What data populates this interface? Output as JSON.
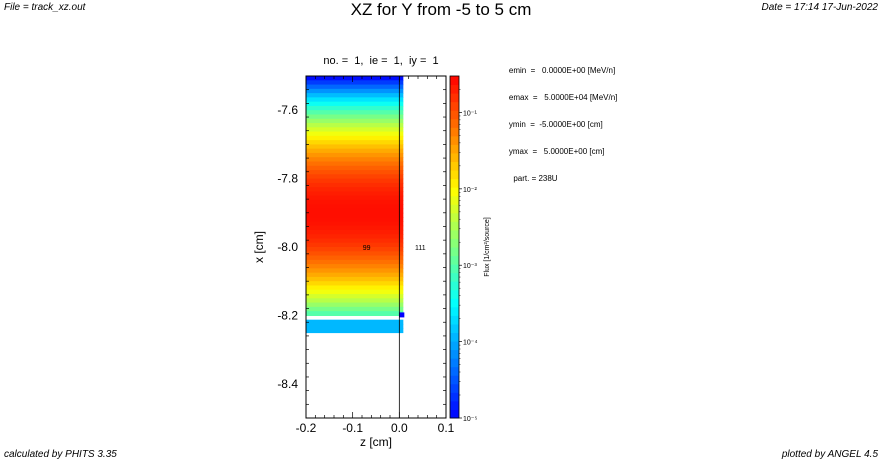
{
  "header": {
    "file": "File = track_xz.out",
    "title": "XZ for Y from -5 to 5 cm",
    "date": "Date = 17:14 17-Jun-2022"
  },
  "subtitle": "no. =  1,  ie =  1,  iy =  1",
  "info": {
    "lines": [
      "    emin  =   0.0000E+00 [MeV/n]",
      "    emax  =   5.0000E+04 [MeV/n]",
      "    ymin  =  -5.0000E+00 [cm]",
      "    ymax  =   5.0000E+00 [cm]",
      "      part. = 238U"
    ]
  },
  "footer": {
    "left": "calculated by PHITS 3.35",
    "right": "plotted by ANGEL 4.5"
  },
  "colors": {
    "region_outline": "#000000",
    "bright_blue_cell": "#0000ff",
    "colormap": [
      "#0000ff",
      "#00ffff",
      "#ffff00",
      "#ff0000"
    ]
  },
  "chart_data": {
    "type": "heatmap",
    "title": "XZ for Y from -5 to 5 cm",
    "xlabel": "z [cm]",
    "ylabel": "x [cm]",
    "xlim": [
      -0.2,
      0.1
    ],
    "ylim": [
      -8.5,
      -7.5
    ],
    "xticks": [
      "-0.2",
      "-0.1",
      "0.0",
      "0.1"
    ],
    "yticks": [
      "-7.6",
      "-7.8",
      "-8.0",
      "-8.2",
      "-8.4"
    ],
    "xtick_values": [
      -0.2,
      -0.1,
      0.0,
      0.1
    ],
    "ytick_values": [
      -7.6,
      -7.8,
      -8.0,
      -8.2,
      -8.4
    ],
    "colorbar": {
      "label": "Flux [1/cm²/source]",
      "scale": "log",
      "range": [
        1e-05,
        0.3
      ],
      "ticks": [
        "10⁻¹",
        "10⁻²",
        "10⁻³",
        "10⁻⁴",
        "10⁻⁵"
      ],
      "tick_values": [
        0.1,
        0.01,
        0.001,
        0.0001,
        1e-05
      ]
    },
    "flux_band": {
      "z_range": [
        -0.2,
        0.0
      ],
      "x_range": [
        -8.25,
        -7.5
      ],
      "peak_flux": 0.25,
      "peak_x": -7.9,
      "gap_x_range": [
        -8.21,
        -8.2
      ],
      "bright_cell": {
        "z": 0.0,
        "x": -8.2
      }
    },
    "region_labels": [
      {
        "text": "99",
        "z": -0.07,
        "x": -8.0
      },
      {
        "text": "111",
        "z": 0.045,
        "x": -8.0
      }
    ],
    "region_boundary_z": 0.0,
    "grid": false,
    "legend": "colorbar-right"
  }
}
